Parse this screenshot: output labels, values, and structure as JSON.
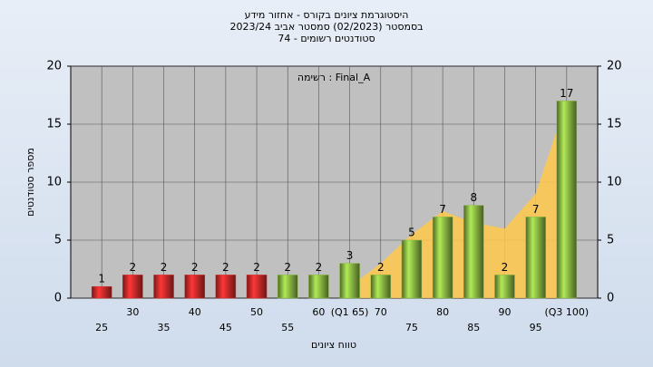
{
  "chart_data": {
    "type": "bar",
    "title": "היסטוגרמת ציונים בקורס - אחזור מידע",
    "subtitle": "בסמסטר  (02/2023)  סמסטר אביב 2023/24",
    "subtitle2": "סטודנטים רשומים - 74",
    "annotation": "רשימה : Final_A",
    "xlabel": "טווח ציונים",
    "ylabel": "מספר סטודנטים",
    "categories": [
      "25",
      "30",
      "35",
      "40",
      "45",
      "50",
      "55",
      "60",
      "(Q1 65)",
      "70",
      "75",
      "80",
      "85",
      "90",
      "95",
      "(Q3 100)"
    ],
    "values": [
      1,
      2,
      2,
      2,
      2,
      2,
      2,
      2,
      3,
      2,
      5,
      7,
      8,
      2,
      7,
      17
    ],
    "colors": [
      "#d92b2b",
      "#d92b2b",
      "#d92b2b",
      "#d92b2b",
      "#d92b2b",
      "#d92b2b",
      "#8dbb45",
      "#8dbb45",
      "#8dbb45",
      "#8dbb45",
      "#8dbb45",
      "#8dbb45",
      "#8dbb45",
      "#8dbb45",
      "#8dbb45",
      "#8dbb45"
    ],
    "area_values": [
      null,
      null,
      null,
      null,
      null,
      null,
      null,
      null,
      1,
      3,
      5.5,
      7.5,
      6.5,
      6,
      9,
      17
    ],
    "area_color": "#ffc84a",
    "ylim": [
      0,
      20
    ],
    "yticks": [
      0,
      5,
      10,
      15,
      20
    ],
    "y2lim": [
      0,
      20
    ],
    "y2ticks": [
      0,
      5,
      10,
      15,
      20
    ],
    "grid": true
  }
}
